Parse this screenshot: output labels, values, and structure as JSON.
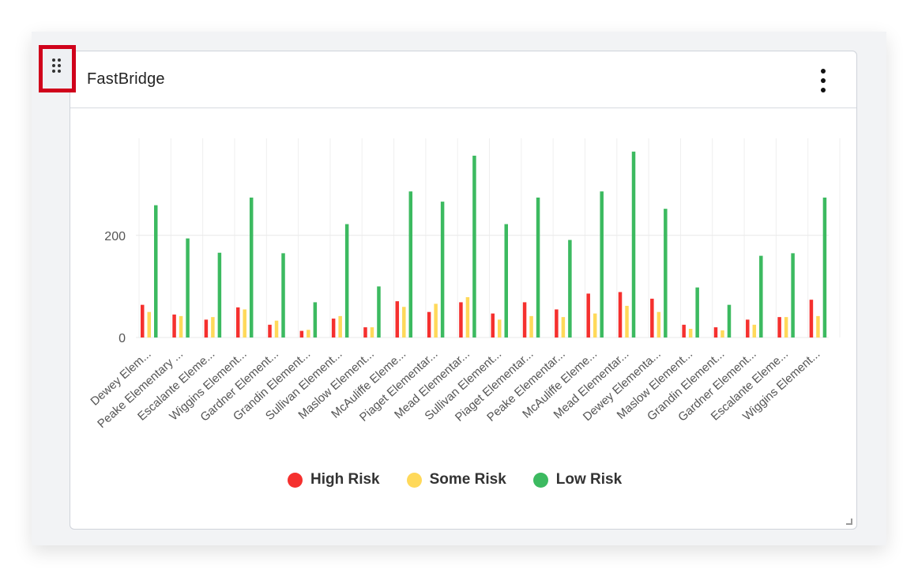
{
  "widget": {
    "title": "FastBridge",
    "menu_icon": "kebab-menu-icon",
    "drag_icon": "drag-handle-icon"
  },
  "colors": {
    "high": "#f5302e",
    "some": "#ffd95a",
    "low": "#3cba60",
    "highlight": "#d0021b"
  },
  "chart_data": {
    "type": "bar",
    "categories": [
      "Dewey Elem...",
      "Peake Elementary ...",
      "Escalante Eleme...",
      "Wiggins Element...",
      "Gardner Element...",
      "Grandin Element...",
      "Sullivan Element...",
      "Maslow Element...",
      "McAuliffe Eleme...",
      "Piaget Elementar...",
      "Mead Elementar...",
      "Sullivan Element...",
      "Piaget Elementar...",
      "Peake Elementar...",
      "McAuliffe Eleme...",
      "Mead Elementar...",
      "Dewey Elementa...",
      "Maslow Element...",
      "Grandin Element...",
      "Gardner Element...",
      "Escalante Eleme...",
      "Wiggins Element..."
    ],
    "series": [
      {
        "name": "High Risk",
        "values": [
          64,
          45,
          35,
          59,
          25,
          13,
          37,
          20,
          71,
          50,
          69,
          47,
          69,
          55,
          86,
          89,
          76,
          25,
          20,
          35,
          40,
          74
        ]
      },
      {
        "name": "Some Risk",
        "values": [
          50,
          42,
          40,
          55,
          33,
          15,
          42,
          20,
          60,
          66,
          79,
          35,
          42,
          40,
          47,
          62,
          50,
          17,
          14,
          25,
          40,
          42
        ]
      },
      {
        "name": "Low Risk",
        "values": [
          259,
          194,
          166,
          274,
          165,
          69,
          222,
          100,
          286,
          266,
          356,
          222,
          274,
          191,
          286,
          364,
          252,
          98,
          64,
          160,
          165,
          274
        ]
      }
    ],
    "yticks": [
      0,
      200
    ],
    "ylim": [
      0,
      390
    ],
    "grid": true,
    "legend_position": "bottom"
  }
}
